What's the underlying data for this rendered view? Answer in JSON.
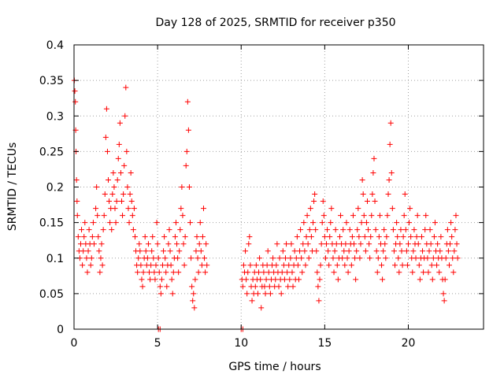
{
  "chart_data": {
    "type": "scatter",
    "title": "Day 128 of 2025, SRMTID for receiver p350",
    "xlabel": "GPS time / hours",
    "ylabel": "SRMTID / TECUs",
    "xlim": [
      0,
      24.5
    ],
    "ylim": [
      0,
      0.4
    ],
    "xticks": [
      0,
      5,
      10,
      15,
      20
    ],
    "xtick_labels": [
      "0",
      "5",
      "10",
      "15",
      "20"
    ],
    "yticks": [
      0,
      0.05,
      0.1,
      0.15,
      0.2,
      0.25,
      0.3,
      0.35,
      0.4
    ],
    "ytick_labels": [
      "0",
      "0.05",
      "0.1",
      "0.15",
      "0.2",
      "0.25",
      "0.3",
      "0.35",
      "0.4"
    ],
    "grid": true,
    "marker": "plus",
    "color": "#ff0000",
    "points": [
      [
        0.02,
        0.35
      ],
      [
        0.05,
        0.335
      ],
      [
        0.08,
        0.32
      ],
      [
        0.1,
        0.28
      ],
      [
        0.12,
        0.25
      ],
      [
        0.15,
        0.21
      ],
      [
        0.18,
        0.18
      ],
      [
        0.2,
        0.16
      ],
      [
        0.25,
        0.13
      ],
      [
        0.3,
        0.11
      ],
      [
        0.35,
        0.1
      ],
      [
        0.4,
        0.12
      ],
      [
        0.45,
        0.14
      ],
      [
        0.5,
        0.09
      ],
      [
        0.55,
        0.11
      ],
      [
        0.6,
        0.13
      ],
      [
        0.65,
        0.15
      ],
      [
        0.7,
        0.12
      ],
      [
        0.75,
        0.1
      ],
      [
        0.8,
        0.08
      ],
      [
        0.85,
        0.11
      ],
      [
        0.9,
        0.14
      ],
      [
        0.95,
        0.12
      ],
      [
        1.0,
        0.09
      ],
      [
        1.05,
        0.1
      ],
      [
        1.1,
        0.13
      ],
      [
        1.15,
        0.15
      ],
      [
        1.2,
        0.12
      ],
      [
        1.3,
        0.17
      ],
      [
        1.35,
        0.2
      ],
      [
        1.4,
        0.16
      ],
      [
        1.45,
        0.13
      ],
      [
        1.5,
        0.11
      ],
      [
        1.55,
        0.08
      ],
      [
        1.6,
        0.1
      ],
      [
        1.65,
        0.12
      ],
      [
        1.7,
        0.09
      ],
      [
        1.75,
        0.14
      ],
      [
        1.8,
        0.16
      ],
      [
        1.85,
        0.19
      ],
      [
        1.9,
        0.27
      ],
      [
        1.95,
        0.31
      ],
      [
        2.0,
        0.25
      ],
      [
        2.05,
        0.21
      ],
      [
        2.1,
        0.18
      ],
      [
        2.15,
        0.15
      ],
      [
        2.2,
        0.17
      ],
      [
        2.25,
        0.14
      ],
      [
        2.3,
        0.19
      ],
      [
        2.35,
        0.22
      ],
      [
        2.4,
        0.2
      ],
      [
        2.45,
        0.17
      ],
      [
        2.5,
        0.15
      ],
      [
        2.55,
        0.18
      ],
      [
        2.6,
        0.21
      ],
      [
        2.65,
        0.24
      ],
      [
        2.7,
        0.26
      ],
      [
        2.75,
        0.29
      ],
      [
        2.8,
        0.22
      ],
      [
        2.85,
        0.18
      ],
      [
        2.9,
        0.16
      ],
      [
        2.95,
        0.19
      ],
      [
        3.0,
        0.23
      ],
      [
        3.05,
        0.3
      ],
      [
        3.1,
        0.34
      ],
      [
        3.15,
        0.25
      ],
      [
        3.2,
        0.2
      ],
      [
        3.25,
        0.17
      ],
      [
        3.3,
        0.15
      ],
      [
        3.35,
        0.19
      ],
      [
        3.4,
        0.22
      ],
      [
        3.45,
        0.18
      ],
      [
        3.5,
        0.16
      ],
      [
        3.55,
        0.14
      ],
      [
        3.6,
        0.17
      ],
      [
        3.65,
        0.13
      ],
      [
        3.7,
        0.11
      ],
      [
        3.75,
        0.09
      ],
      [
        3.8,
        0.08
      ],
      [
        3.85,
        0.1
      ],
      [
        3.9,
        0.12
      ],
      [
        3.95,
        0.11
      ],
      [
        4.0,
        0.09
      ],
      [
        4.05,
        0.07
      ],
      [
        4.1,
        0.06
      ],
      [
        4.15,
        0.08
      ],
      [
        4.2,
        0.1
      ],
      [
        4.25,
        0.13
      ],
      [
        4.3,
        0.11
      ],
      [
        4.35,
        0.09
      ],
      [
        4.4,
        0.1
      ],
      [
        4.45,
        0.12
      ],
      [
        4.5,
        0.08
      ],
      [
        4.55,
        0.07
      ],
      [
        4.6,
        0.09
      ],
      [
        4.65,
        0.11
      ],
      [
        4.7,
        0.13
      ],
      [
        4.75,
        0.1
      ],
      [
        4.8,
        0.08
      ],
      [
        4.85,
        0.07
      ],
      [
        4.9,
        0.09
      ],
      [
        4.95,
        0.15
      ],
      [
        5.0,
        0.12
      ],
      [
        5.05,
        0.1
      ],
      [
        5.1,
        0.08
      ],
      [
        5.15,
        0.06
      ],
      [
        5.2,
        0.05
      ],
      [
        5.25,
        0.07
      ],
      [
        5.3,
        0.09
      ],
      [
        5.35,
        0.11
      ],
      [
        5.4,
        0.13
      ],
      [
        5.45,
        0.1
      ],
      [
        5.5,
        0.08
      ],
      [
        5.55,
        0.06
      ],
      [
        5.6,
        0.09
      ],
      [
        5.65,
        0.12
      ],
      [
        5.7,
        0.14
      ],
      [
        5.75,
        0.11
      ],
      [
        5.8,
        0.09
      ],
      [
        5.85,
        0.07
      ],
      [
        5.9,
        0.05
      ],
      [
        5.95,
        0.08
      ],
      [
        6.0,
        0.1
      ],
      [
        6.05,
        0.13
      ],
      [
        6.1,
        0.15
      ],
      [
        6.15,
        0.12
      ],
      [
        6.2,
        0.1
      ],
      [
        6.25,
        0.08
      ],
      [
        6.3,
        0.11
      ],
      [
        6.35,
        0.14
      ],
      [
        6.4,
        0.17
      ],
      [
        6.45,
        0.2
      ],
      [
        6.5,
        0.16
      ],
      [
        6.55,
        0.12
      ],
      [
        6.6,
        0.09
      ],
      [
        6.65,
        0.13
      ],
      [
        6.7,
        0.23
      ],
      [
        6.75,
        0.25
      ],
      [
        6.8,
        0.32
      ],
      [
        6.85,
        0.28
      ],
      [
        6.9,
        0.2
      ],
      [
        6.95,
        0.15
      ],
      [
        7.0,
        0.1
      ],
      [
        7.05,
        0.06
      ],
      [
        7.1,
        0.04
      ],
      [
        7.15,
        0.05
      ],
      [
        7.2,
        0.03
      ],
      [
        7.25,
        0.07
      ],
      [
        7.3,
        0.11
      ],
      [
        7.35,
        0.13
      ],
      [
        7.4,
        0.1
      ],
      [
        7.45,
        0.08
      ],
      [
        7.5,
        0.12
      ],
      [
        7.55,
        0.15
      ],
      [
        7.6,
        0.11
      ],
      [
        7.65,
        0.09
      ],
      [
        7.7,
        0.13
      ],
      [
        7.75,
        0.17
      ],
      [
        7.8,
        0.1
      ],
      [
        7.85,
        0.08
      ],
      [
        7.9,
        0.12
      ],
      [
        7.95,
        0.09
      ],
      [
        10.05,
        0.07
      ],
      [
        10.1,
        0.06
      ],
      [
        10.15,
        0.09
      ],
      [
        10.2,
        0.08
      ],
      [
        10.25,
        0.11
      ],
      [
        10.3,
        0.07
      ],
      [
        10.35,
        0.05
      ],
      [
        10.4,
        0.08
      ],
      [
        10.45,
        0.12
      ],
      [
        10.5,
        0.13
      ],
      [
        10.55,
        0.09
      ],
      [
        10.6,
        0.06
      ],
      [
        10.65,
        0.04
      ],
      [
        10.7,
        0.07
      ],
      [
        10.75,
        0.05
      ],
      [
        10.8,
        0.08
      ],
      [
        10.85,
        0.06
      ],
      [
        10.9,
        0.09
      ],
      [
        10.95,
        0.07
      ],
      [
        11.0,
        0.05
      ],
      [
        11.05,
        0.08
      ],
      [
        11.1,
        0.1
      ],
      [
        11.15,
        0.07
      ],
      [
        11.2,
        0.03
      ],
      [
        11.25,
        0.06
      ],
      [
        11.3,
        0.09
      ],
      [
        11.35,
        0.08
      ],
      [
        11.4,
        0.06
      ],
      [
        11.45,
        0.05
      ],
      [
        11.5,
        0.07
      ],
      [
        11.55,
        0.09
      ],
      [
        11.6,
        0.11
      ],
      [
        11.65,
        0.08
      ],
      [
        11.7,
        0.06
      ],
      [
        11.75,
        0.05
      ],
      [
        11.8,
        0.07
      ],
      [
        11.85,
        0.09
      ],
      [
        11.9,
        0.1
      ],
      [
        11.95,
        0.08
      ],
      [
        12.0,
        0.06
      ],
      [
        12.05,
        0.07
      ],
      [
        12.1,
        0.09
      ],
      [
        12.15,
        0.12
      ],
      [
        12.2,
        0.08
      ],
      [
        12.25,
        0.06
      ],
      [
        12.3,
        0.1
      ],
      [
        12.35,
        0.07
      ],
      [
        12.4,
        0.05
      ],
      [
        12.45,
        0.08
      ],
      [
        12.5,
        0.11
      ],
      [
        12.55,
        0.09
      ],
      [
        12.6,
        0.07
      ],
      [
        12.65,
        0.1
      ],
      [
        12.7,
        0.12
      ],
      [
        12.75,
        0.08
      ],
      [
        12.8,
        0.06
      ],
      [
        12.85,
        0.09
      ],
      [
        12.9,
        0.07
      ],
      [
        12.95,
        0.1
      ],
      [
        13.0,
        0.12
      ],
      [
        13.05,
        0.08
      ],
      [
        13.1,
        0.06
      ],
      [
        13.15,
        0.09
      ],
      [
        13.2,
        0.11
      ],
      [
        13.25,
        0.07
      ],
      [
        13.3,
        0.1
      ],
      [
        13.35,
        0.13
      ],
      [
        13.4,
        0.09
      ],
      [
        13.45,
        0.07
      ],
      [
        13.5,
        0.11
      ],
      [
        13.55,
        0.14
      ],
      [
        13.6,
        0.1
      ],
      [
        13.65,
        0.08
      ],
      [
        13.7,
        0.12
      ],
      [
        13.75,
        0.15
      ],
      [
        13.8,
        0.11
      ],
      [
        13.85,
        0.09
      ],
      [
        13.9,
        0.13
      ],
      [
        13.95,
        0.16
      ],
      [
        14.0,
        0.12
      ],
      [
        14.05,
        0.1
      ],
      [
        14.1,
        0.14
      ],
      [
        14.15,
        0.17
      ],
      [
        14.2,
        0.13
      ],
      [
        14.25,
        0.11
      ],
      [
        14.3,
        0.15
      ],
      [
        14.35,
        0.18
      ],
      [
        14.4,
        0.19
      ],
      [
        14.45,
        0.14
      ],
      [
        14.5,
        0.11
      ],
      [
        14.55,
        0.08
      ],
      [
        14.6,
        0.06
      ],
      [
        14.65,
        0.04
      ],
      [
        14.7,
        0.07
      ],
      [
        14.75,
        0.09
      ],
      [
        14.8,
        0.12
      ],
      [
        14.85,
        0.15
      ],
      [
        14.9,
        0.18
      ],
      [
        14.95,
        0.16
      ],
      [
        15.0,
        0.13
      ],
      [
        15.05,
        0.1
      ],
      [
        15.1,
        0.12
      ],
      [
        15.15,
        0.14
      ],
      [
        15.2,
        0.11
      ],
      [
        15.25,
        0.09
      ],
      [
        15.3,
        0.13
      ],
      [
        15.35,
        0.15
      ],
      [
        15.4,
        0.17
      ],
      [
        15.45,
        0.12
      ],
      [
        15.5,
        0.1
      ],
      [
        15.55,
        0.08
      ],
      [
        15.6,
        0.11
      ],
      [
        15.65,
        0.14
      ],
      [
        15.7,
        0.12
      ],
      [
        15.75,
        0.09
      ],
      [
        15.8,
        0.07
      ],
      [
        15.85,
        0.1
      ],
      [
        15.9,
        0.13
      ],
      [
        15.95,
        0.16
      ],
      [
        16.0,
        0.12
      ],
      [
        16.05,
        0.1
      ],
      [
        16.1,
        0.14
      ],
      [
        16.15,
        0.11
      ],
      [
        16.2,
        0.09
      ],
      [
        16.25,
        0.12
      ],
      [
        16.3,
        0.15
      ],
      [
        16.35,
        0.1
      ],
      [
        16.4,
        0.08
      ],
      [
        16.45,
        0.11
      ],
      [
        16.5,
        0.14
      ],
      [
        16.55,
        0.12
      ],
      [
        16.6,
        0.09
      ],
      [
        16.65,
        0.13
      ],
      [
        16.7,
        0.16
      ],
      [
        16.75,
        0.12
      ],
      [
        16.8,
        0.1
      ],
      [
        16.85,
        0.07
      ],
      [
        16.9,
        0.11
      ],
      [
        16.95,
        0.14
      ],
      [
        17.0,
        0.17
      ],
      [
        17.05,
        0.13
      ],
      [
        17.1,
        0.1
      ],
      [
        17.15,
        0.12
      ],
      [
        17.2,
        0.15
      ],
      [
        17.25,
        0.21
      ],
      [
        17.3,
        0.19
      ],
      [
        17.35,
        0.16
      ],
      [
        17.4,
        0.13
      ],
      [
        17.45,
        0.11
      ],
      [
        17.5,
        0.15
      ],
      [
        17.55,
        0.18
      ],
      [
        17.6,
        0.14
      ],
      [
        17.65,
        0.12
      ],
      [
        17.7,
        0.1
      ],
      [
        17.75,
        0.13
      ],
      [
        17.8,
        0.16
      ],
      [
        17.85,
        0.19
      ],
      [
        17.9,
        0.22
      ],
      [
        17.95,
        0.24
      ],
      [
        18.0,
        0.18
      ],
      [
        18.05,
        0.14
      ],
      [
        18.1,
        0.11
      ],
      [
        18.15,
        0.08
      ],
      [
        18.2,
        0.1
      ],
      [
        18.25,
        0.13
      ],
      [
        18.3,
        0.16
      ],
      [
        18.35,
        0.12
      ],
      [
        18.4,
        0.09
      ],
      [
        18.45,
        0.07
      ],
      [
        18.5,
        0.11
      ],
      [
        18.55,
        0.14
      ],
      [
        18.6,
        0.12
      ],
      [
        18.65,
        0.1
      ],
      [
        18.7,
        0.13
      ],
      [
        18.75,
        0.16
      ],
      [
        18.8,
        0.19
      ],
      [
        18.85,
        0.21
      ],
      [
        18.9,
        0.26
      ],
      [
        18.95,
        0.29
      ],
      [
        19.0,
        0.22
      ],
      [
        19.05,
        0.17
      ],
      [
        19.1,
        0.14
      ],
      [
        19.15,
        0.11
      ],
      [
        19.2,
        0.09
      ],
      [
        19.25,
        0.12
      ],
      [
        19.3,
        0.15
      ],
      [
        19.35,
        0.13
      ],
      [
        19.4,
        0.1
      ],
      [
        19.45,
        0.08
      ],
      [
        19.5,
        0.12
      ],
      [
        19.55,
        0.14
      ],
      [
        19.6,
        0.11
      ],
      [
        19.65,
        0.09
      ],
      [
        19.7,
        0.13
      ],
      [
        19.75,
        0.16
      ],
      [
        19.8,
        0.19
      ],
      [
        19.85,
        0.14
      ],
      [
        19.9,
        0.11
      ],
      [
        19.95,
        0.09
      ],
      [
        20.0,
        0.12
      ],
      [
        20.05,
        0.15
      ],
      [
        20.1,
        0.17
      ],
      [
        20.15,
        0.13
      ],
      [
        20.2,
        0.1
      ],
      [
        20.25,
        0.08
      ],
      [
        20.3,
        0.11
      ],
      [
        20.35,
        0.14
      ],
      [
        20.4,
        0.12
      ],
      [
        20.45,
        0.1
      ],
      [
        20.5,
        0.13
      ],
      [
        20.55,
        0.16
      ],
      [
        20.6,
        0.12
      ],
      [
        20.65,
        0.09
      ],
      [
        20.7,
        0.07
      ],
      [
        20.75,
        0.1
      ],
      [
        20.8,
        0.13
      ],
      [
        20.85,
        0.11
      ],
      [
        20.9,
        0.08
      ],
      [
        20.95,
        0.1
      ],
      [
        21.0,
        0.14
      ],
      [
        21.05,
        0.16
      ],
      [
        21.1,
        0.12
      ],
      [
        21.15,
        0.1
      ],
      [
        21.2,
        0.08
      ],
      [
        21.25,
        0.11
      ],
      [
        21.3,
        0.14
      ],
      [
        21.35,
        0.12
      ],
      [
        21.4,
        0.09
      ],
      [
        21.45,
        0.07
      ],
      [
        21.5,
        0.1
      ],
      [
        21.55,
        0.13
      ],
      [
        21.6,
        0.15
      ],
      [
        21.65,
        0.11
      ],
      [
        21.7,
        0.09
      ],
      [
        21.75,
        0.12
      ],
      [
        21.8,
        0.1
      ],
      [
        21.85,
        0.08
      ],
      [
        21.9,
        0.11
      ],
      [
        21.95,
        0.13
      ],
      [
        22.0,
        0.1
      ],
      [
        22.05,
        0.07
      ],
      [
        22.1,
        0.05
      ],
      [
        22.15,
        0.04
      ],
      [
        22.2,
        0.07
      ],
      [
        22.25,
        0.1
      ],
      [
        22.3,
        0.12
      ],
      [
        22.35,
        0.14
      ],
      [
        22.4,
        0.11
      ],
      [
        22.45,
        0.09
      ],
      [
        22.5,
        0.12
      ],
      [
        22.55,
        0.15
      ],
      [
        22.6,
        0.13
      ],
      [
        22.65,
        0.1
      ],
      [
        22.7,
        0.08
      ],
      [
        22.75,
        0.11
      ],
      [
        22.8,
        0.14
      ],
      [
        22.85,
        0.16
      ],
      [
        22.9,
        0.12
      ],
      [
        22.95,
        0.1
      ],
      [
        5.05,
        0.0
      ],
      [
        5.15,
        0.0
      ],
      [
        10.0,
        0.0
      ],
      [
        10.1,
        0.0
      ]
    ]
  }
}
